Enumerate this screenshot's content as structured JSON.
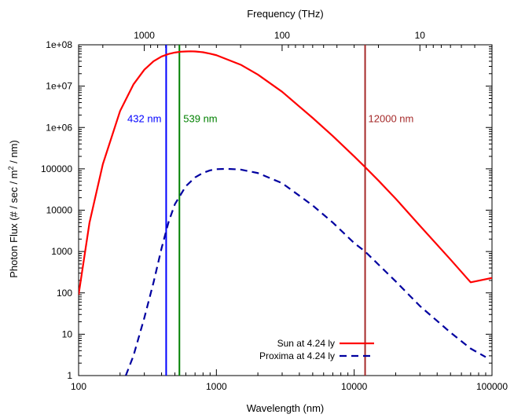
{
  "chart_data": {
    "type": "line",
    "x_scale": "log",
    "y_scale": "log",
    "xlabel": "Wavelength (nm)",
    "x2label": "Frequency (THz)",
    "ylabel": "Photon Flux (# / sec / m² / nm)",
    "ylabel_parts": {
      "pre": "Photon Flux (# / sec / m",
      "sup": "2",
      "post": " / nm)"
    },
    "xlim": [
      100,
      100000
    ],
    "ylim": [
      1,
      100000000
    ],
    "x_ticks": [
      {
        "value": 100,
        "label": "100"
      },
      {
        "value": 1000,
        "label": "1000"
      },
      {
        "value": 10000,
        "label": "10000"
      },
      {
        "value": 100000,
        "label": "100000"
      }
    ],
    "x2_ticks": [
      {
        "value": 1000,
        "label": "1000"
      },
      {
        "value": 100,
        "label": "100"
      },
      {
        "value": 10,
        "label": "10"
      }
    ],
    "y_ticks": [
      {
        "value": 1,
        "label": "1"
      },
      {
        "value": 10,
        "label": "10"
      },
      {
        "value": 100,
        "label": "100"
      },
      {
        "value": 1000,
        "label": "1000"
      },
      {
        "value": 10000,
        "label": "10000"
      },
      {
        "value": 100000,
        "label": "100000"
      },
      {
        "value": 1000000,
        "label": "1e+06"
      },
      {
        "value": 10000000,
        "label": "1e+07"
      },
      {
        "value": 100000000,
        "label": "1e+08"
      }
    ],
    "series": [
      {
        "name": "Sun at 4.24 ly",
        "color": "#ff0000",
        "style": "solid",
        "x": [
          100,
          120,
          150,
          200,
          250,
          300,
          350,
          400,
          450,
          500,
          550,
          600,
          650,
          700,
          800,
          900,
          1000,
          1500,
          2000,
          3000,
          5000,
          7000,
          10000,
          12000,
          15000,
          20000,
          30000,
          50000,
          70000,
          100000
        ],
        "y": [
          90,
          5000,
          130000,
          2500000,
          11000000,
          25000000,
          40000000,
          52000000,
          60000000,
          65000000,
          68000000,
          69000000,
          69500000,
          69000000,
          66000000,
          61000000,
          56000000,
          33000000,
          19000000,
          7300000,
          1700000,
          620000,
          200000,
          110000,
          52000,
          19000,
          4200,
          640,
          180,
          230
        ]
      },
      {
        "name": "Proxima at 4.24 ly",
        "color": "#0000a0",
        "style": "dashed",
        "x": [
          220,
          250,
          300,
          350,
          400,
          450,
          500,
          600,
          700,
          800,
          900,
          1000,
          1200,
          1500,
          2000,
          3000,
          5000,
          7000,
          10000,
          12000,
          20000,
          30000,
          50000,
          70000,
          80000,
          90000
        ],
        "y": [
          1,
          3,
          25,
          180,
          1200,
          5200,
          14000,
          38000,
          62000,
          80000,
          92000,
          98000,
          100000,
          96000,
          79000,
          45000,
          13000,
          5000,
          1600,
          1000,
          190,
          48,
          11,
          4.5,
          3.5,
          2.8
        ]
      }
    ],
    "vlines": [
      {
        "x": 432,
        "label": "432 nm",
        "color": "#0000ff"
      },
      {
        "x": 539,
        "label": "539 nm",
        "color": "#008000"
      },
      {
        "x": 12000,
        "label": "12000 nm",
        "color": "#a52a2a"
      }
    ],
    "legend_position": "bottom-right",
    "grid": false
  }
}
